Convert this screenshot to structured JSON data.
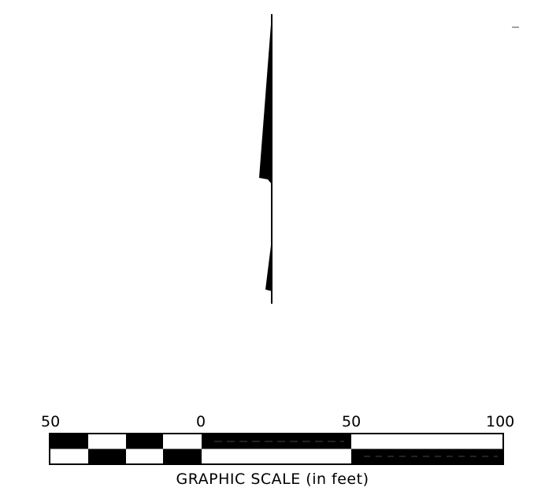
{
  "graphic_scale": {
    "tick_labels": [
      "50",
      "0",
      "50",
      "100"
    ],
    "caption": "GRAPHIC SCALE (in feet)",
    "units": "feet",
    "bar_color": "#000000",
    "background_color": "#ffffff"
  },
  "north_arrow": {
    "icon": "north-arrow-icon",
    "color": "#000000"
  }
}
